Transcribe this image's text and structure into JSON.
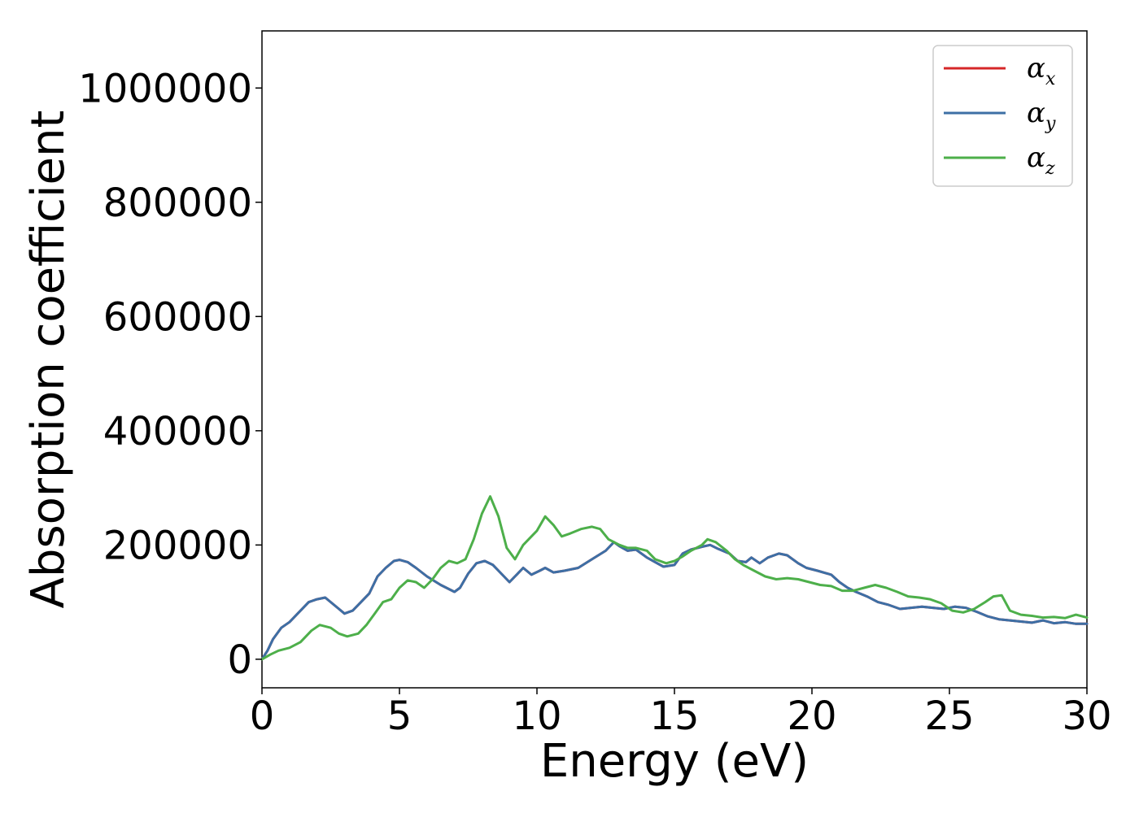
{
  "chart_data": {
    "type": "line",
    "xlabel": "Energy (eV)",
    "ylabel": "Absorption coefficient",
    "xlim": [
      0,
      30
    ],
    "ylim": [
      -50000,
      1100000
    ],
    "xticks": [
      0,
      5,
      10,
      15,
      20,
      25,
      30
    ],
    "xtick_labels": [
      "0",
      "5",
      "10",
      "15",
      "20",
      "25",
      "30"
    ],
    "yticks": [
      0,
      200000,
      400000,
      600000,
      800000,
      1000000
    ],
    "ytick_labels": [
      "0",
      "200000",
      "400000",
      "600000",
      "800000",
      "1000000"
    ],
    "grid": false,
    "legend_position": "top-right",
    "series": [
      {
        "name": "α",
        "subscript": "x",
        "color": "#d62728",
        "x": [
          0,
          0.2,
          0.4,
          0.7,
          1.0,
          1.3,
          1.7,
          2.0,
          2.3,
          2.5,
          2.8,
          3.0,
          3.3,
          3.6,
          3.9,
          4.2,
          4.5,
          4.8,
          5.0,
          5.3,
          5.6,
          6.0,
          6.5,
          7.0,
          7.2,
          7.5,
          7.8,
          8.1,
          8.4,
          8.7,
          9.0,
          9.2,
          9.5,
          9.8,
          10.1,
          10.3,
          10.6,
          11.0,
          11.5,
          12.0,
          12.5,
          12.8,
          13.0,
          13.3,
          13.6,
          14.0,
          14.3,
          14.6,
          15.0,
          15.3,
          15.6,
          16.0,
          16.3,
          16.6,
          17.0,
          17.3,
          17.6,
          17.8,
          18.1,
          18.4,
          18.8,
          19.1,
          19.5,
          19.8,
          20.2,
          20.7,
          21.0,
          21.3,
          21.6,
          22.0,
          22.4,
          22.8,
          23.2,
          23.6,
          24.0,
          24.4,
          24.8,
          25.2,
          25.6,
          26.0,
          26.4,
          26.8,
          27.2,
          27.6,
          28.0,
          28.4,
          28.8,
          29.2,
          29.6,
          30.0
        ],
        "y": [
          0,
          15000,
          35000,
          55000,
          65000,
          80000,
          100000,
          105000,
          108000,
          100000,
          88000,
          80000,
          85000,
          100000,
          115000,
          145000,
          160000,
          172000,
          174000,
          170000,
          160000,
          145000,
          130000,
          118000,
          125000,
          150000,
          168000,
          172000,
          165000,
          150000,
          135000,
          145000,
          160000,
          148000,
          155000,
          160000,
          152000,
          155000,
          160000,
          175000,
          190000,
          205000,
          198000,
          190000,
          192000,
          178000,
          170000,
          162000,
          165000,
          185000,
          192000,
          197000,
          200000,
          193000,
          185000,
          172000,
          170000,
          178000,
          168000,
          178000,
          185000,
          182000,
          168000,
          160000,
          155000,
          148000,
          135000,
          125000,
          118000,
          110000,
          100000,
          95000,
          88000,
          90000,
          92000,
          90000,
          88000,
          92000,
          90000,
          83000,
          75000,
          70000,
          68000,
          66000,
          64000,
          68000,
          63000,
          65000,
          62000,
          62000
        ]
      },
      {
        "name": "α",
        "subscript": "y",
        "color": "#3d6fa5",
        "x": [
          0,
          0.2,
          0.4,
          0.7,
          1.0,
          1.3,
          1.7,
          2.0,
          2.3,
          2.5,
          2.8,
          3.0,
          3.3,
          3.6,
          3.9,
          4.2,
          4.5,
          4.8,
          5.0,
          5.3,
          5.6,
          6.0,
          6.5,
          7.0,
          7.2,
          7.5,
          7.8,
          8.1,
          8.4,
          8.7,
          9.0,
          9.2,
          9.5,
          9.8,
          10.1,
          10.3,
          10.6,
          11.0,
          11.5,
          12.0,
          12.5,
          12.8,
          13.0,
          13.3,
          13.6,
          14.0,
          14.3,
          14.6,
          15.0,
          15.3,
          15.6,
          16.0,
          16.3,
          16.6,
          17.0,
          17.3,
          17.6,
          17.8,
          18.1,
          18.4,
          18.8,
          19.1,
          19.5,
          19.8,
          20.2,
          20.7,
          21.0,
          21.3,
          21.6,
          22.0,
          22.4,
          22.8,
          23.2,
          23.6,
          24.0,
          24.4,
          24.8,
          25.2,
          25.6,
          26.0,
          26.4,
          26.8,
          27.2,
          27.6,
          28.0,
          28.4,
          28.8,
          29.2,
          29.6,
          30.0
        ],
        "y": [
          0,
          15000,
          35000,
          55000,
          65000,
          80000,
          100000,
          105000,
          108000,
          100000,
          88000,
          80000,
          85000,
          100000,
          115000,
          145000,
          160000,
          172000,
          174000,
          170000,
          160000,
          145000,
          130000,
          118000,
          125000,
          150000,
          168000,
          172000,
          165000,
          150000,
          135000,
          145000,
          160000,
          148000,
          155000,
          160000,
          152000,
          155000,
          160000,
          175000,
          190000,
          205000,
          198000,
          190000,
          192000,
          178000,
          170000,
          162000,
          165000,
          185000,
          192000,
          197000,
          200000,
          193000,
          185000,
          172000,
          170000,
          178000,
          168000,
          178000,
          185000,
          182000,
          168000,
          160000,
          155000,
          148000,
          135000,
          125000,
          118000,
          110000,
          100000,
          95000,
          88000,
          90000,
          92000,
          90000,
          88000,
          92000,
          90000,
          83000,
          75000,
          70000,
          68000,
          66000,
          64000,
          68000,
          63000,
          65000,
          62000,
          62000
        ]
      },
      {
        "name": "α",
        "subscript": "z",
        "color": "#4daf4a",
        "x": [
          0,
          0.3,
          0.6,
          1.0,
          1.4,
          1.8,
          2.1,
          2.5,
          2.8,
          3.1,
          3.5,
          3.8,
          4.1,
          4.4,
          4.7,
          5.0,
          5.3,
          5.6,
          5.9,
          6.2,
          6.5,
          6.8,
          7.1,
          7.4,
          7.7,
          8.0,
          8.3,
          8.6,
          8.9,
          9.2,
          9.5,
          9.8,
          10.0,
          10.3,
          10.6,
          10.9,
          11.2,
          11.6,
          12.0,
          12.3,
          12.6,
          13.0,
          13.3,
          13.6,
          14.0,
          14.3,
          14.7,
          15.0,
          15.3,
          15.6,
          16.0,
          16.2,
          16.5,
          16.9,
          17.2,
          17.5,
          17.9,
          18.3,
          18.7,
          19.1,
          19.5,
          19.9,
          20.3,
          20.7,
          21.1,
          21.5,
          21.9,
          22.3,
          22.7,
          23.1,
          23.5,
          23.9,
          24.3,
          24.7,
          25.1,
          25.5,
          25.9,
          26.3,
          26.6,
          26.9,
          27.2,
          27.6,
          28.0,
          28.4,
          28.8,
          29.2,
          29.6,
          30.0
        ],
        "y": [
          0,
          8000,
          15000,
          20000,
          30000,
          50000,
          60000,
          55000,
          45000,
          40000,
          45000,
          60000,
          80000,
          100000,
          105000,
          125000,
          138000,
          135000,
          125000,
          140000,
          160000,
          172000,
          168000,
          175000,
          210000,
          255000,
          285000,
          250000,
          195000,
          175000,
          200000,
          215000,
          225000,
          250000,
          235000,
          215000,
          220000,
          228000,
          232000,
          228000,
          210000,
          200000,
          195000,
          195000,
          190000,
          175000,
          168000,
          172000,
          180000,
          190000,
          200000,
          210000,
          205000,
          190000,
          175000,
          165000,
          155000,
          145000,
          140000,
          142000,
          140000,
          135000,
          130000,
          128000,
          120000,
          120000,
          125000,
          130000,
          125000,
          118000,
          110000,
          108000,
          105000,
          98000,
          85000,
          82000,
          88000,
          100000,
          110000,
          112000,
          85000,
          78000,
          76000,
          73000,
          74000,
          72000,
          78000,
          73000
        ]
      }
    ]
  }
}
